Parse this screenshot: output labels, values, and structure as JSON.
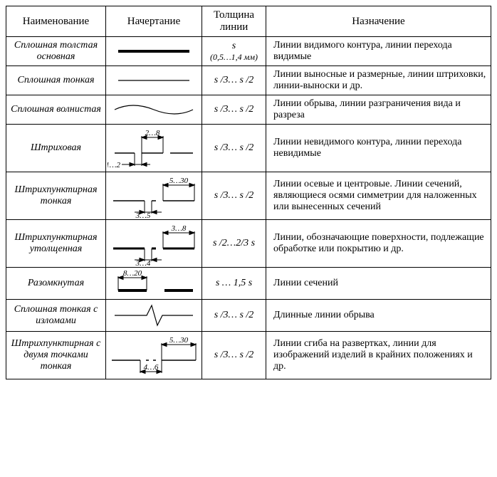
{
  "headers": {
    "name": "Наименование",
    "style": "Начертание",
    "thickness": "Толщина линии",
    "purpose": "Назначение"
  },
  "rows": [
    {
      "name": "Сплошная толстая основная",
      "thickness_top": "s",
      "thickness_bottom": "(0,5…1,4 мм)",
      "purpose": "Линии видимого контура, линии перехода видимые",
      "line_type": "solid_thick"
    },
    {
      "name": "Сплошная тонкая",
      "thickness": "s /3… s /2",
      "purpose": "Линии выносные и размерные, линии штриховки, линии-выноски и др.",
      "line_type": "solid_thin"
    },
    {
      "name": "Сплошная волнистая",
      "thickness": "s /3… s /2",
      "purpose": "Линии обрыва, линии разграничения вида и разреза",
      "line_type": "wavy"
    },
    {
      "name": "Штриховая",
      "thickness": "s /3… s /2",
      "purpose": "Линии невидимого контура, линии перехода невидимые",
      "line_type": "dashed",
      "dim_top": "2…8",
      "dim_bottom": "1…2"
    },
    {
      "name": "Штрихпунктирная тонкая",
      "thickness": "s /3… s /2",
      "purpose": "Линии осевые и центровые. Линии сечений, являющиеся осями симметрии для наложенных или вынесенных сечений",
      "line_type": "dash_dot_thin",
      "dim_top": "5…30",
      "dim_bottom": "3…5"
    },
    {
      "name": "Штрихпунктирная утолщенная",
      "thickness": "s /2…2/3 s",
      "purpose": "Линии, обозначающие поверхности, подлежащие обработке или покрытию и др.",
      "line_type": "dash_dot_thick",
      "dim_top": "3…8",
      "dim_bottom": "3…4"
    },
    {
      "name": "Разомкнутая",
      "thickness": "s … 1,5 s",
      "purpose": "Линии сечений",
      "line_type": "open",
      "dim_top": "8…20"
    },
    {
      "name": "Сплошная тонкая с изломами",
      "thickness": "s /3… s /2",
      "purpose": "Длинные линии обрыва",
      "line_type": "zigzag"
    },
    {
      "name": "Штрихпунктирная с двумя точками тонкая",
      "thickness": "s /3… s /2",
      "purpose": "Линии сгиба на развертках, линии для изображений изделий в крайних положениях и др.",
      "line_type": "dash_2dot",
      "dim_top": "5…30",
      "dim_bottom": "4…6"
    }
  ],
  "styling": {
    "border_color": "#000000",
    "font_family": "Times New Roman",
    "line_color": "#000000",
    "thick_line_width": 4,
    "thin_line_width": 1.2
  }
}
